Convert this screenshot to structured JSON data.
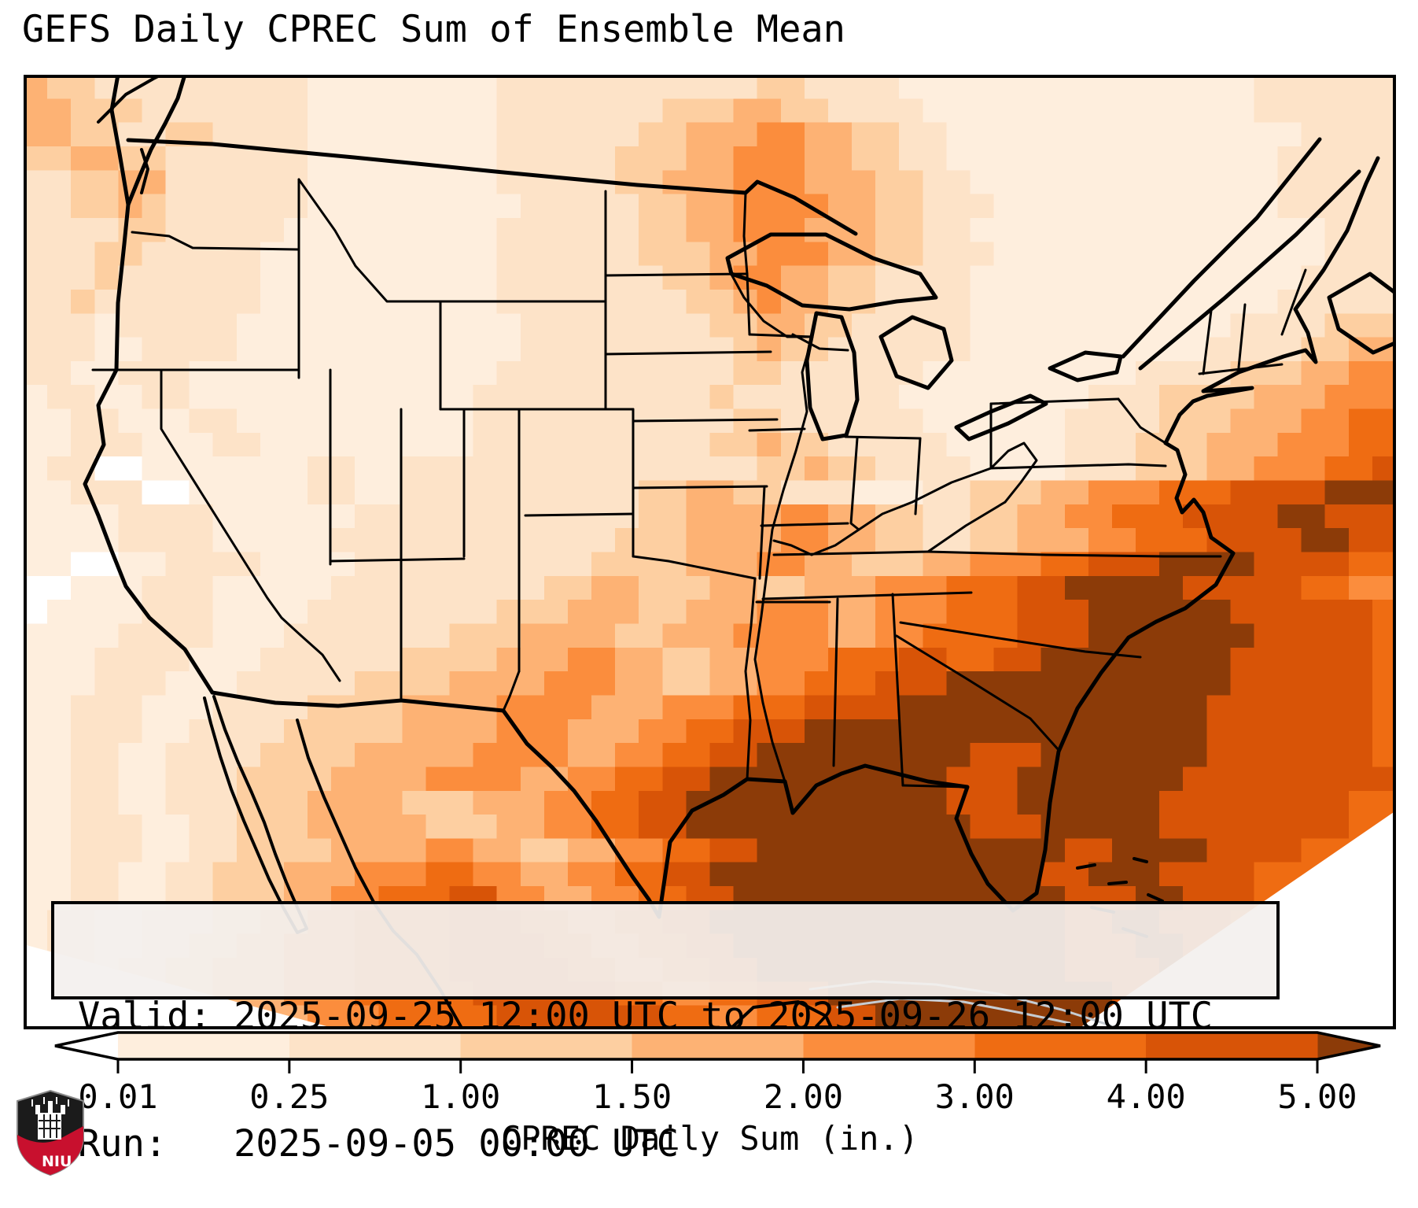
{
  "title": "GEFS Daily CPREC Sum of Ensemble Mean",
  "info_box": {
    "valid_label": "Valid:",
    "valid_value": "2025-09-25 12:00 UTC to 2025-09-26 12:00 UTC",
    "run_label": "Run:",
    "run_value": "2025-09-05 00:00 UTC"
  },
  "colorbar": {
    "label": "CPREC Daily Sum (in.)",
    "ticks": [
      "0.01",
      "0.25",
      "1.00",
      "1.50",
      "2.00",
      "3.00",
      "4.00",
      "5.00"
    ],
    "under_color": "#ffffff",
    "over_color": "#8c3b08",
    "segment_colors": [
      "#feeedd",
      "#fde3c8",
      "#fdcfa1",
      "#fdb274",
      "#fb8d3d",
      "#ef6c12",
      "#d85407"
    ]
  },
  "logo": {
    "text": "NIU",
    "shield_dark": "#1b1b1b",
    "shield_red": "#c8102e"
  },
  "map": {
    "cols": 58,
    "rows": 40,
    "palette": [
      "#ffffff",
      "#feeedd",
      "#fde3c8",
      "#fdcfa1",
      "#fdb274",
      "#fb8d3d",
      "#ef6c12",
      "#d85407",
      "#8c3b08"
    ],
    "level_bounds": [
      "0.01",
      "0.25",
      "1.00",
      "1.50",
      "2.00",
      "3.00",
      "4.00",
      "5.00"
    ],
    "grid_rle": [
      "4*1,3*2,2*9,1*8,2*11,3*2,2*4,1*15,2*6",
      "4*2,3*3,2*7,1*8,2*7,3*3,4*2,3*2,2*4,1*14,2*6",
      "4*2,3*2,2*2,3*2,2*4,1*8,2*6,3*2,4*3,5*2,4*2,3*2,2*2,1*15,2*4",
      "3*2,4*2,3*2,2*6,1*8,2*5,3*3,4*2,5*3,4*2,3*2,2*2,1*14,2*5",
      "2*2,3*2,4*2,2*6,1*8,2*5,3*2,4*3,5*3,4*3,3*2,2*2,1*13,2*5",
      "2*2,3*2,4*1,3*1,2*6,1*9,2*5,3*2,4*2,5*4,4*2,3*2,2*3,1*12,2*5",
      "2*4,3*2,2*5,1*9,2*6,3*2,4*2,5*3,4*3,3*2,2*2,1*15,2*3",
      "2*3,3*2,2*5,1*10,2*6,3*3,4*2,5*3,4*2,3*2,2*3,1*14,2*3",
      "2*3,3*1,2*6,1*10,2*7,3*2,4*1,5*2,4*2,3*2,2*4,1*14,2*4",
      "2*2,3*1,2*7,1*10,2*8,3*2,4*1,5*1,4*2,3*2,2*4,1*13,2*5",
      "2*3,1*1,2*5,1*12,2*8,3*2,4*2,3*2,2*5,1*11,2*4,3*3",
      "2*3,1*2,2*4,1*12,2*9,3*1,4*1,3*2,2*6,1*10,2*4,3*2,4*2",
      "2*2,1*2,2*3,1*13,2*10,3*2,2*6,1*9,2*4,3*3,4*2,5*2",
      "1*1,2*2,1*2,2*2,1*12,2*10,3*1,2*7,1*8,2*3,3*4,4*3,5*3",
      "1*2,2*2,1*3,2*2,1*10,2*11,3*2,2*6,1*6,2*4,3*3,4*3,5*2,6*2",
      "1*2,2*3,1*3,2*2,1*9,2*10,3*2,4*1,3*2,2*5,1*5,2*3,3*3,4*3,5*3,6*2",
      "1*1,2*2,0*2,1*7,2*2,1*2,2*15,3*2,4*1,3*2,2*4,1*4,2*3,3*3,4*2,5*3,6*2,7*1",
      "1*2,2*3,0*2,1*5,2*2,1*2,2*10,3*2,4*2,3*2,2*3,1*3,2*2,3*3,4*2,5*3,6*3,7*4,8*3",
      "1*4,2*4,1*6,2*12,3*2,4*4,5*2,4*2,3*2,2*2,3*2,4*2,5*2,6*3,7*4,8*2,7*3",
      "1*4,2*4,1*5,2*12,3*3,4*4,5*2,4*2,3*2,2*2,3*2,4*3,5*2,6*3,7*4,8*2,7*2",
      "1*2,0*2,1*2,2*4,1*4,2*10,3*4,4*3,5*2,4*2,3*3,4*2,5*3,6*2,7*3,8*4,7*4,6*2",
      "0*2,1*3,2*3,1*5,2*9,3*2,4*2,3*3,4*2,3*2,4*3,5*3,6*3,7*2,8*5,7*5,6*2,5*2",
      "0*1,1*4,2*3,1*4,2*8,3*3,4*3,3*2,4*3,5*3,4*2,5*3,6*3,7*3,8*6,7*6,6*1",
      "1*4,2*4,1*3,2*7,3*3,4*4,3*2,4*3,5*4,4*2,5*2,6*4,7*3,8*7,7*5,6*1",
      "1*3,2*4,1*3,2*6,3*4,4*3,5*2,4*2,3*2,4*2,5*3,6*3,7*2,6*2,7*2,8*8,7*6,6*1",
      "1*3,2*3,1*3,2*5,3*4,4*4,5*3,4*2,3*2,4*2,5*2,6*3,7*3,8*12,7*6,6*1",
      "1*2,2*3,1*3,2*4,3*4,4*4,5*4,4*3,5*3,6*3,7*4,8*13,7*7,6*1",
      "1*2,2*3,1*2,2*4,3*5,4*4,5*3,4*3,5*2,6*2,7*3,8*17,7*7,6*1",
      "1*2,2*2,1*2,2*4,3*4,4*5,5*4,4*2,5*2,6*2,7*2,8*9,7*3,8*7,7*7,6*1",
      "1*2,2*2,1*2,2*3,3*4,4*4,5*4,4*2,5*2,6*2,7*2,8*10,7*3,8*7,7*9",
      "1*2,2*2,1*2,2*3,3*3,4*4,3*3,4*3,5*2,6*2,7*2,8*11,7*3,8*6,7*8,6*2",
      "1*2,2*3,1*2,2*2,3*3,4*5,3*3,4*2,5*2,6*2,7*2,8*12,7*3,8*5,7*8,6*2",
      "1*2,2*3,1*2,2*2,3*4,4*4,5*2,4*2,3*2,4*2,5*2,6*2,7*2,8*13,7*2,8*4,7*4,6*4",
      "1*2,2*2,1*2,2*2,3*3,4*3,5*3,6*2,5*2,4*2,5*2,6*2,7*2,8*14,7*2,8*3,7*4,6*4,5*2",
      "1*2,2*2,1*2,2*2,3*3,4*2,5*2,6*3,7*2,5*2,4*2,5*2,6*2,7*2,8*14,7*3,8*2,7*3,6*4,5*2",
      "1*1,2*2,1*2,2*3,3*2,4*2,5*2,6*4,7*3,6*2,5*2,6*2,7*2,8*15,7*2,8*2,7*3,6*3,5*2,4*2",
      "1*1,2*2,1*2,2*2,3*2,4*2,5*3,6*4,7*4,6*2,5*2,6*2,7*2,8*14,7*3,8*2,7*2,6*3,5*2,4*2",
      "1*1,2*2,1*1,2*2,3*2,4*3,5*3,6*4,7*5,6*2,5*2,6*2,7*2,8*13,7*4,8*1,7*2,6*3,5*2,4*2",
      "1*1,2*1,1*2,2*2,3*2,4*3,5*3,6*5,7*6,6*2,5*2,6*2,7*3,8*12,7*4,6*4,5*2,4*2",
      "1*1,2*1,1*2,2*2,3*3,4*3,5*3,6*5,7*7,6*2,5*2,6*3,7*2,8*11,7*4,6*4,5*2,4*1"
    ]
  }
}
